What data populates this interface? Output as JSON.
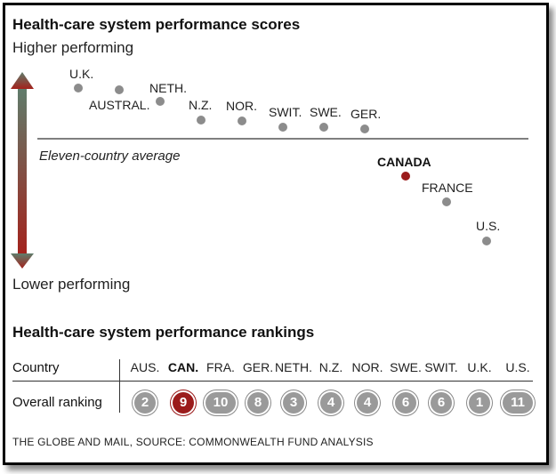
{
  "title": "Health-care system performance scores",
  "scale_top_label": "Higher performing",
  "scale_bottom_label": "Lower performing",
  "average_label": "Eleven-country average",
  "colors": {
    "highlight": "#9b1b1b",
    "point": "#8c8c8c",
    "arrow_top": "#5f7d6c",
    "arrow_bottom": "#a4221c"
  },
  "chart_data": {
    "type": "scatter",
    "title": "Health-care system performance scores",
    "ylabel_top": "Higher performing",
    "ylabel_bottom": "Lower performing",
    "reference_line": "Eleven-country average",
    "points": [
      {
        "label": "U.K.",
        "order": 1
      },
      {
        "label": "AUSTRAL.",
        "order": 2
      },
      {
        "label": "NETH.",
        "order": 3
      },
      {
        "label": "N.Z.",
        "order": 4
      },
      {
        "label": "NOR.",
        "order": 5
      },
      {
        "label": "SWIT.",
        "order": 6
      },
      {
        "label": "SWE.",
        "order": 7
      },
      {
        "label": "GER.",
        "order": 8
      },
      {
        "label": "CANADA",
        "order": 9,
        "highlight": true
      },
      {
        "label": "FRANCE",
        "order": 10
      },
      {
        "label": "U.S.",
        "order": 11
      }
    ]
  },
  "rankings": {
    "title": "Health-care system performance rankings",
    "country_header": "Country",
    "ranking_header": "Overall ranking",
    "columns": [
      {
        "country": "AUS.",
        "rank": "2"
      },
      {
        "country": "CAN.",
        "rank": "9",
        "highlight": true
      },
      {
        "country": "FRA.",
        "rank": "10"
      },
      {
        "country": "GER.",
        "rank": "8"
      },
      {
        "country": "NETH.",
        "rank": "3"
      },
      {
        "country": "N.Z.",
        "rank": "4"
      },
      {
        "country": "NOR.",
        "rank": "4"
      },
      {
        "country": "SWE.",
        "rank": "6"
      },
      {
        "country": "SWIT.",
        "rank": "6"
      },
      {
        "country": "U.K.",
        "rank": "1"
      },
      {
        "country": "U.S.",
        "rank": "11"
      }
    ]
  },
  "footer": "THE GLOBE AND MAIL,  SOURCE: COMMONWEALTH FUND ANALYSIS"
}
